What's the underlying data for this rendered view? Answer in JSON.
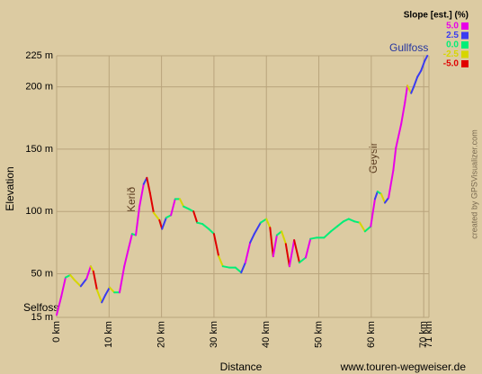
{
  "chart_data": {
    "type": "line",
    "x_label": "Distance",
    "y_label": "Elevation",
    "legend_title": "Slope [est.] (%)",
    "slope_legend": [
      {
        "value": 5,
        "label": "5.0",
        "color": "#e800e8"
      },
      {
        "value": 2.5,
        "label": "2.5",
        "color": "#3b3bf0"
      },
      {
        "value": 0,
        "label": "0.0",
        "color": "#00ee77"
      },
      {
        "value": -2.5,
        "label": "-2.5",
        "color": "#d6d600"
      },
      {
        "value": -5,
        "label": "-5.0",
        "color": "#e00000"
      }
    ],
    "annotations": [
      "Selfoss",
      "Kerið",
      "Geysir",
      "Gullfoss"
    ],
    "credit": "www.touren-wegweiser.de",
    "credit_vertical": "created by GPSVisualizer.com",
    "xlim": [
      0,
      71
    ],
    "ylim": [
      15,
      225
    ],
    "xticks": [
      {
        "value": 0,
        "label": "0 km"
      },
      {
        "value": 10,
        "label": "10 km"
      },
      {
        "value": 20,
        "label": "20 km"
      },
      {
        "value": 30,
        "label": "30 km"
      },
      {
        "value": 40,
        "label": "40 km"
      },
      {
        "value": 50,
        "label": "50 km"
      },
      {
        "value": 60,
        "label": "60 km"
      },
      {
        "value": 70,
        "label": "70 km"
      },
      {
        "value": 71,
        "label": "71 km"
      }
    ],
    "yticks": [
      {
        "value": 15,
        "label": "15 m"
      },
      {
        "value": 50,
        "label": "50 m"
      },
      {
        "value": 100,
        "label": "100 m"
      },
      {
        "value": 150,
        "label": "150 m"
      },
      {
        "value": 200,
        "label": "200 m"
      },
      {
        "value": 225,
        "label": "225 m"
      }
    ],
    "grid": true,
    "x": [
      0,
      0.9,
      1.7,
      2.6,
      3.4,
      4.6,
      5.7,
      6.5,
      7.0,
      7.7,
      8.6,
      9.3,
      10.1,
      11.0,
      12.0,
      12.9,
      13.7,
      14.4,
      15.1,
      15.8,
      16.6,
      17.2,
      17.8,
      18.5,
      19.6,
      20.1,
      20.9,
      21.8,
      22.6,
      23.5,
      24.2,
      25.2,
      26.1,
      26.8,
      27.8,
      29.0,
      30.0,
      30.9,
      31.7,
      32.9,
      34.1,
      35.2,
      36.0,
      36.9,
      37.7,
      38.9,
      40.0,
      40.7,
      41.3,
      42.0,
      42.9,
      43.7,
      44.4,
      45.3,
      46.3,
      47.5,
      48.4,
      49.6,
      51.0,
      52.3,
      53.5,
      54.7,
      55.7,
      56.8,
      57.8,
      58.8,
      59.9,
      60.7,
      61.2,
      61.9,
      62.6,
      63.3,
      64.2,
      64.7,
      65.7,
      66.4,
      66.9,
      67.6,
      68.1,
      68.8,
      69.5,
      70.2,
      70.7
    ],
    "series": [
      {
        "name": "Elevation",
        "values": [
          17,
          32,
          47,
          49,
          45,
          40,
          46,
          56,
          52,
          37,
          27,
          33,
          39,
          35,
          35,
          56,
          70,
          82,
          81,
          104,
          122,
          127,
          115,
          99,
          93,
          86,
          95,
          97,
          110,
          110,
          104,
          102,
          100,
          91,
          90,
          86,
          82,
          64,
          56,
          55,
          55,
          51,
          59,
          75,
          82,
          91,
          94,
          87,
          64,
          81,
          84,
          74,
          56,
          77,
          59,
          63,
          78,
          79,
          79,
          84,
          88,
          92,
          94,
          92,
          91,
          84,
          88,
          110,
          116,
          114,
          107,
          111,
          133,
          151,
          170,
          187,
          201,
          195,
          200,
          208,
          213,
          221,
          225
        ]
      }
    ]
  }
}
